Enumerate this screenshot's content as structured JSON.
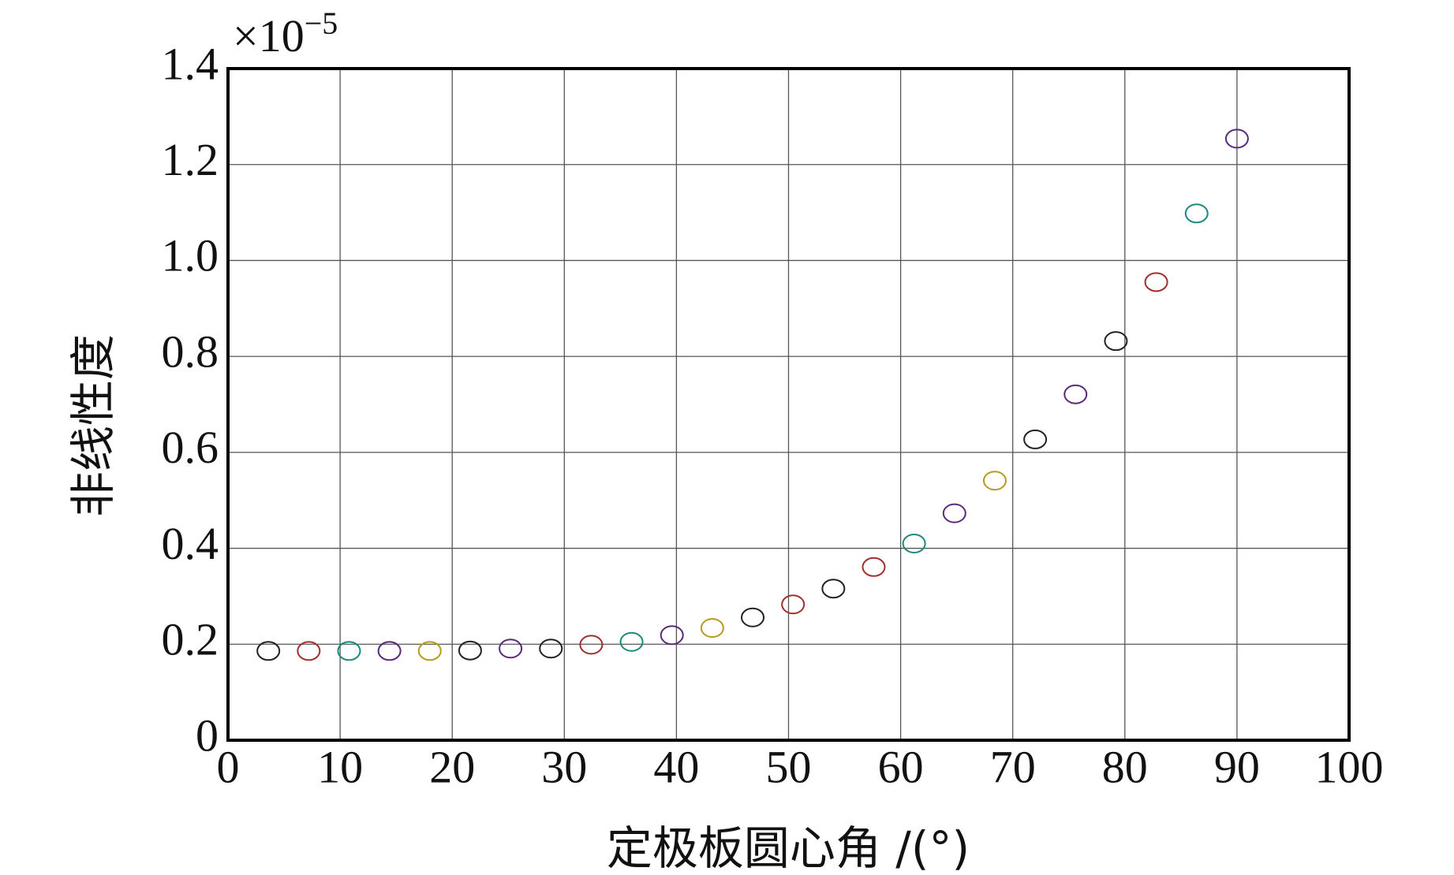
{
  "chart_data": {
    "type": "scatter",
    "x_label": "定极板圆心角 /(°)",
    "y_label": "非线性度",
    "y_multiplier": {
      "base": "×10",
      "exponent": "−5"
    },
    "x": [
      3.6,
      7.2,
      10.8,
      14.4,
      18,
      21.6,
      25.2,
      28.8,
      32.4,
      36,
      39.6,
      43.2,
      46.8,
      50.4,
      54,
      57.6,
      61.2,
      64.8,
      68.4,
      72,
      75.6,
      79.2,
      82.8,
      86.4,
      90
    ],
    "values": [
      0.186,
      0.186,
      0.186,
      0.186,
      0.186,
      0.187,
      0.191,
      0.191,
      0.199,
      0.205,
      0.219,
      0.234,
      0.256,
      0.283,
      0.316,
      0.361,
      0.41,
      0.473,
      0.541,
      0.627,
      0.721,
      0.832,
      0.955,
      1.098,
      1.254
    ],
    "colors": [
      "#222222",
      "#a0302f",
      "#1a8a7a",
      "#5a2a7a",
      "#b89a20",
      "#222222",
      "#5a2a7a",
      "#222222",
      "#a0302f",
      "#1a8a7a",
      "#5a2a7a",
      "#b89a20",
      "#222222",
      "#a0302f",
      "#222222",
      "#a0302f",
      "#1a8a7a",
      "#5a2a7a",
      "#b89a20",
      "#222222",
      "#5a2a7a",
      "#222222",
      "#a0302f",
      "#1a8a7a",
      "#5a2a7a"
    ],
    "xlim": [
      0,
      100
    ],
    "xticks": [
      0,
      10,
      20,
      30,
      40,
      50,
      60,
      70,
      80,
      90,
      100
    ],
    "ylim": [
      0,
      1.4
    ],
    "yticks": [
      0,
      0.2,
      0.4,
      0.6,
      0.8,
      {
        "value": 1,
        "label": "1.0"
      },
      1.2,
      1.4
    ],
    "grid": true
  }
}
